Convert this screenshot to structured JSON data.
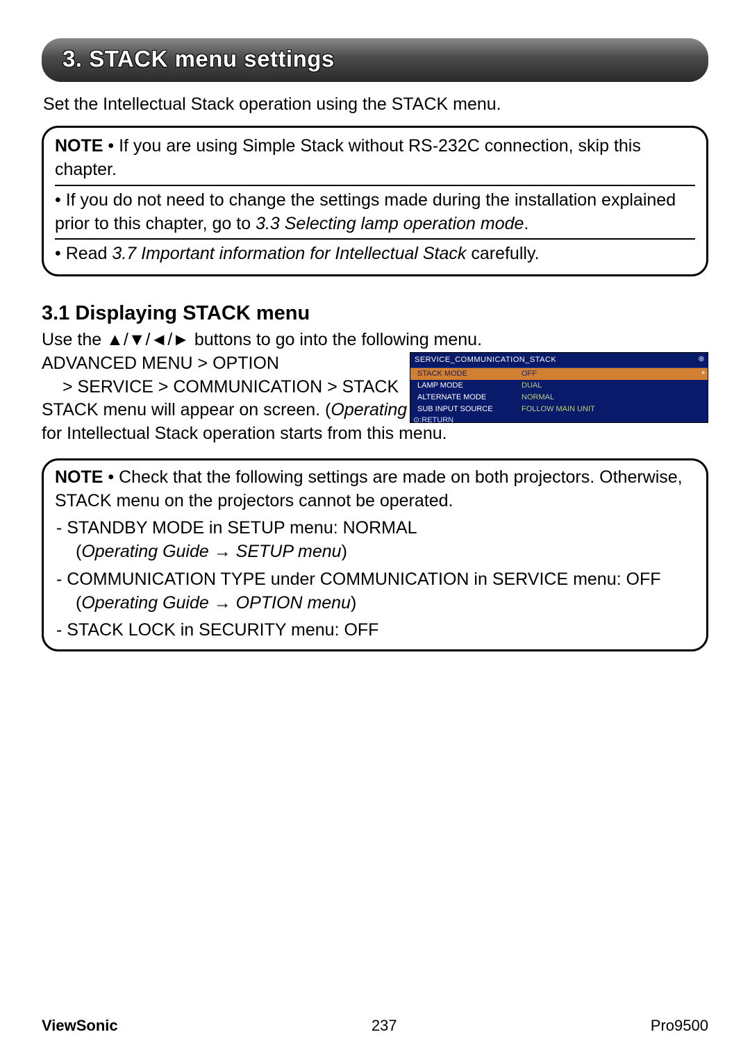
{
  "header": {
    "title": "3. STACK menu settings"
  },
  "intro": "Set the Intellectual Stack operation using the STACK menu.",
  "note1": {
    "label": "NOTE",
    "bullet1_a": " • If you are using Simple Stack without RS-232C connection, skip this chapter.",
    "bullet2": "• If you do not need to change the settings made during the installation explained prior to this chapter, go to ",
    "bullet2_ref": "3.3 Selecting lamp operation mode",
    "bullet2_end": ".",
    "bullet3_a": " • Read ",
    "bullet3_ref": "3.7 Important information for Intellectual Stack",
    "bullet3_b": " carefully."
  },
  "subsection": {
    "title": "3.1 Displaying STACK menu"
  },
  "body": {
    "line1_a": "Use the ",
    "line1_arrows": "▲/▼/◄/►",
    "line1_b": " buttons to go into the following menu.",
    "line2": "ADVANCED MENU > OPTION",
    "line3": "> SERVICE > COMMUNICATION > STACK",
    "line4_a": "STACK menu will appear on screen.  (",
    "line4_ref": "Operating Guide → OPTION menu",
    "line4_b": ") The setting for Intellectual Stack operation starts from this menu."
  },
  "screenshot": {
    "title": "SERVICE_COMMUNICATION_STACK",
    "rows": [
      {
        "k": "STACK MODE",
        "v": "OFF",
        "hl": true
      },
      {
        "k": "LAMP MODE",
        "v": "DUAL",
        "hl": false
      },
      {
        "k": "ALTERNATE MODE",
        "v": "NORMAL",
        "hl": false
      },
      {
        "k": "SUB INPUT SOURCE",
        "v": "FOLLOW MAIN UNIT",
        "hl": false
      }
    ],
    "return": "⊙:RETURN"
  },
  "note2": {
    "label": "NOTE",
    "intro": " • Check that the following settings are made on both projectors. Otherwise, STACK menu on the projectors cannot be operated.",
    "item1": "-  STANDBY MODE in SETUP menu: NORMAL",
    "item1_sub_a": "(",
    "item1_sub_ref": "Operating Guide → SETUP menu",
    "item1_sub_b": ")",
    "item2": "-  COMMUNICATION TYPE under COMMUNICATION in SERVICE menu: OFF",
    "item2_sub_a": "(",
    "item2_sub_ref": "Operating Guide → OPTION menu",
    "item2_sub_b": ")",
    "item3": " - STACK LOCK in SECURITY menu: OFF"
  },
  "footer": {
    "brand": "ViewSonic",
    "page": "237",
    "model": "Pro9500"
  }
}
